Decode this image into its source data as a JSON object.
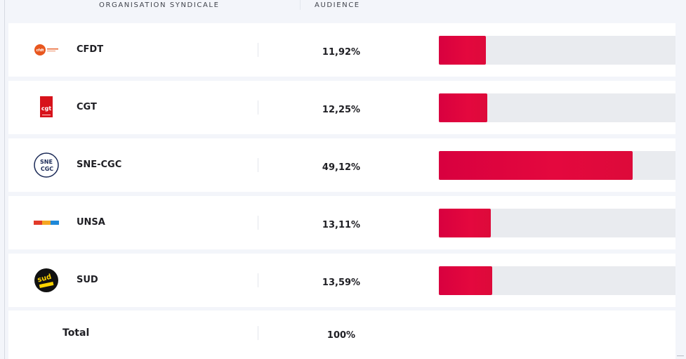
{
  "header": {
    "col_organisation": "ORGANISATION SYNDICALE",
    "col_audience": "AUDIENCE"
  },
  "rows": [
    {
      "name": "CFDT",
      "audience": "11,92%",
      "logo": "cfdt-logo",
      "logo_text": "cfdt"
    },
    {
      "name": "CGT",
      "audience": "12,25%",
      "logo": "cgt-logo",
      "logo_text": "cgt"
    },
    {
      "name": "SNE-CGC",
      "audience": "49,12%",
      "logo": "sne-cgc-logo",
      "logo_text": "SNE CGC"
    },
    {
      "name": "UNSA",
      "audience": "13,11%",
      "logo": "unsa-logo",
      "logo_text": "unsa"
    },
    {
      "name": "SUD",
      "audience": "13,59%",
      "logo": "sud-logo",
      "logo_text": "sud"
    }
  ],
  "total": {
    "label": "Total",
    "value": "100%"
  },
  "chart_data": {
    "type": "bar",
    "orientation": "horizontal",
    "categories": [
      "CFDT",
      "CGT",
      "SNE-CGC",
      "UNSA",
      "SUD"
    ],
    "values": [
      11.92,
      12.25,
      49.12,
      13.11,
      13.59
    ],
    "title": "",
    "xlabel": "",
    "ylabel": "",
    "xlim": [
      0,
      60
    ],
    "grid": false
  },
  "colors": {
    "bar": "#dc0a3f",
    "track": "#e9ebef",
    "background": "#f3f5fa",
    "row": "#ffffff"
  }
}
